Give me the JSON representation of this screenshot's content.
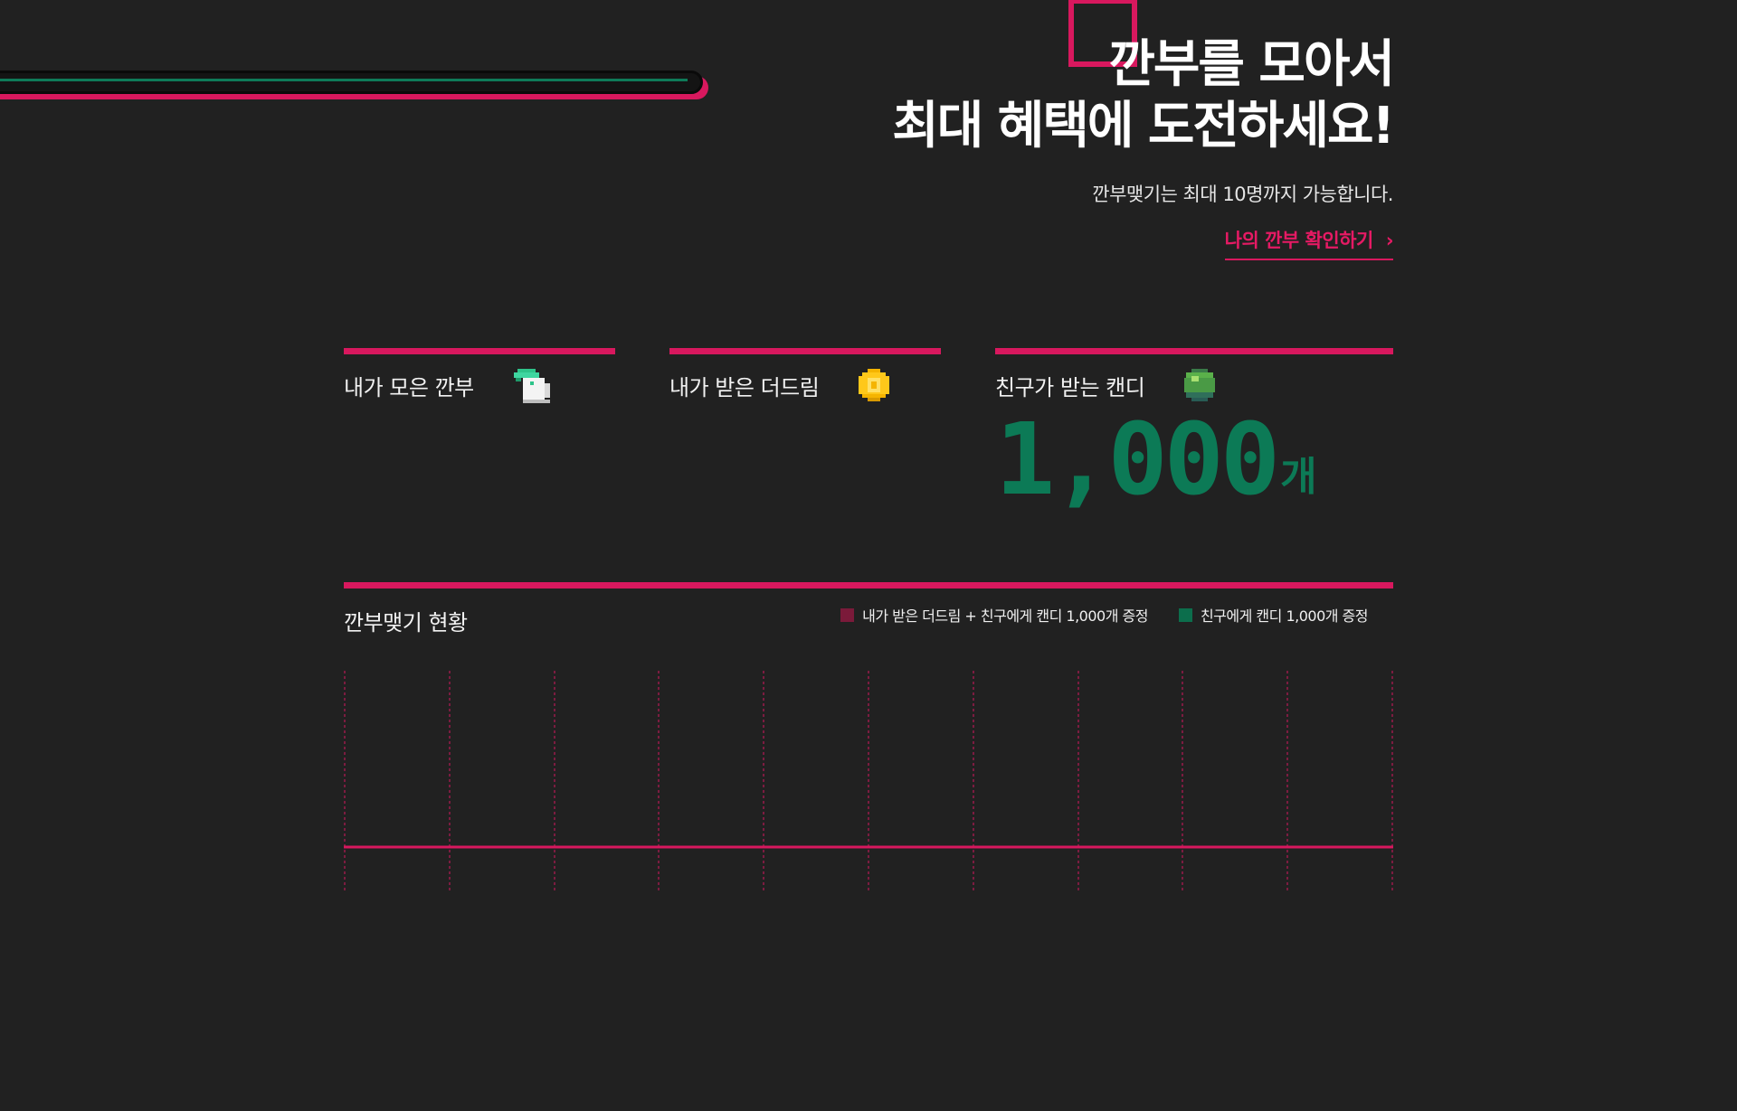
{
  "hero": {
    "title_line1": "깐부를 모아서",
    "title_line2": "최대 혜택에 도전하세요!",
    "subtitle": "깐부맺기는 최대 10명까지 가능합니다.",
    "link_label": "나의 깐부 확인하기",
    "link_chevron": "›"
  },
  "stats": {
    "collected": {
      "label": "내가 모은 깐부",
      "icon": "squid-card-icon"
    },
    "received": {
      "label": "내가 받은 더드림",
      "icon": "gold-coin-icon"
    },
    "friend_candy": {
      "label": "친구가 받는 캔디",
      "icon": "green-candy-icon",
      "value": "1,000",
      "unit": "개"
    }
  },
  "status": {
    "title": "깐부맺기 현황",
    "legend": [
      {
        "label": "내가 받은 더드림 + 친구에게 캔디 1,000개 증정",
        "color": "#7b1a3a"
      },
      {
        "label": "친구에게 캔디 1,000개 증정",
        "color": "#0c6e4c"
      }
    ],
    "slots": 10
  },
  "colors": {
    "accent": "#d8185e",
    "green": "#0c7a56",
    "background": "#212121"
  }
}
